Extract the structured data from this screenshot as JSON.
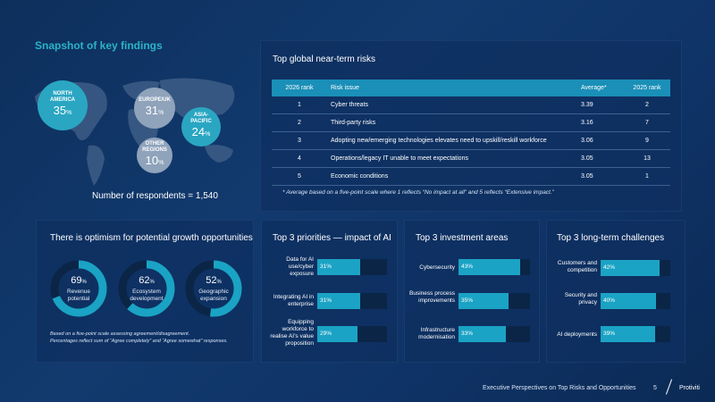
{
  "snapshot": {
    "title": "Snapshot of key findings",
    "regions": [
      {
        "name_line1": "NORTH",
        "name_line2": "AMERICA",
        "value": "35",
        "unit": "%"
      },
      {
        "name_line1": "EUROPE/UK",
        "name_line2": "",
        "value": "31",
        "unit": "%"
      },
      {
        "name_line1": "ASIA-",
        "name_line2": "PACIFIC",
        "value": "24",
        "unit": "%"
      },
      {
        "name_line1": "OTHER",
        "name_line2": "REGIONS",
        "value": "10",
        "unit": "%"
      }
    ],
    "respondents": "Number of respondents = 1,540"
  },
  "risks": {
    "title": "Top global near-term risks",
    "headers": [
      "2026 rank",
      "Risk issue",
      "Average*",
      "2025 rank"
    ],
    "rows": [
      {
        "rank": "1",
        "issue": "Cyber threats",
        "average": "3.39",
        "prev": "2"
      },
      {
        "rank": "2",
        "issue": "Third-party risks",
        "average": "3.16",
        "prev": "7"
      },
      {
        "rank": "3",
        "issue": "Adopting new/emerging technologies elevates need to upskill/reskill workforce",
        "average": "3.06",
        "prev": "9"
      },
      {
        "rank": "4",
        "issue": "Operations/legacy IT unable to meet expectations",
        "average": "3.05",
        "prev": "13"
      },
      {
        "rank": "5",
        "issue": "Economic conditions",
        "average": "3.05",
        "prev": "1"
      }
    ],
    "footnote": "* Average based on a five-point scale where 1 reflects “No impact at all” and 5 reflects “Extensive impact.”"
  },
  "optimism": {
    "title": "There is optimism for potential growth opportunities",
    "items": [
      {
        "value": "69",
        "unit": "%",
        "label_line1": "Revenue",
        "label_line2": "potential",
        "fraction": 0.69
      },
      {
        "value": "62",
        "unit": "%",
        "label_line1": "Ecosystem",
        "label_line2": "development",
        "fraction": 0.62
      },
      {
        "value": "52",
        "unit": "%",
        "label_line1": "Geographic",
        "label_line2": "expansion",
        "fraction": 0.52
      }
    ],
    "note_line1": "Based on a five-point scale assessing agreement/disagreement.",
    "note_line2": "Percentages reflect sum of “Agree completely” and “Agree somewhat” responses."
  },
  "priorities": {
    "title": "Top 3 priorities — impact of AI",
    "items": [
      {
        "label": "Data for AI use/cyber exposure",
        "pct": "31%",
        "fraction": 0.31
      },
      {
        "label": "Integrating AI in enterprise",
        "pct": "31%",
        "fraction": 0.31
      },
      {
        "label": "Equipping workforce to realise AI’s value proposition",
        "pct": "29%",
        "fraction": 0.29
      }
    ]
  },
  "investment": {
    "title": "Top 3 investment areas",
    "items": [
      {
        "label": "Cybersecurity",
        "pct": "43%",
        "fraction": 0.43
      },
      {
        "label": "Business process improvements",
        "pct": "35%",
        "fraction": 0.35
      },
      {
        "label": "Infrastructure modernisation",
        "pct": "33%",
        "fraction": 0.33
      }
    ]
  },
  "challenges": {
    "title": "Top 3 long-term challenges",
    "items": [
      {
        "label": "Customers and competition",
        "pct": "42%",
        "fraction": 0.42
      },
      {
        "label": "Security and privacy",
        "pct": "40%",
        "fraction": 0.4
      },
      {
        "label": "AI deployments",
        "pct": "39%",
        "fraction": 0.39
      }
    ]
  },
  "footer": {
    "text": "Executive Perspectives on Top Risks and Opportunities",
    "page": "5",
    "brand": "Protiviti"
  },
  "colors": {
    "accent": "#2bb3c7",
    "bar_fill": "#1aa3c4",
    "table_header": "#1a8fb8",
    "bubble": "#2aa6c2",
    "bubble_light": "#8fa3bb"
  }
}
